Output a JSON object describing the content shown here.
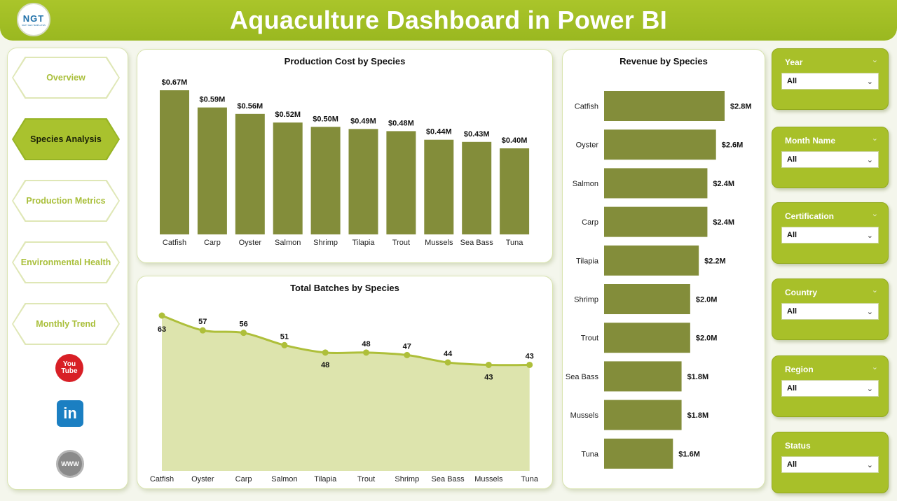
{
  "header": {
    "title": "Aquaculture Dashboard in Power BI",
    "logo_text": "NGT",
    "logo_subtext": "NEXT GEN TEMPLATES"
  },
  "nav": {
    "items": [
      {
        "label": "Overview",
        "active": false
      },
      {
        "label": "Species Analysis",
        "active": true
      },
      {
        "label": "Production Metrics",
        "active": false
      },
      {
        "label": "Environmental Health",
        "active": false
      },
      {
        "label": "Monthly Trend",
        "active": false
      }
    ],
    "social": {
      "youtube_top": "You",
      "youtube_bottom": "Tube",
      "linkedin": "in",
      "www": "WWW"
    }
  },
  "colors": {
    "accent": "#a8c029",
    "bar": "#838d3a",
    "line": "#aebf3a",
    "area": "#dde4ad"
  },
  "chart_data": [
    {
      "type": "bar",
      "title": "Production Cost by Species",
      "categories": [
        "Catfish",
        "Carp",
        "Oyster",
        "Salmon",
        "Shrimp",
        "Tilapia",
        "Trout",
        "Mussels",
        "Sea Bass",
        "Tuna"
      ],
      "values": [
        0.67,
        0.59,
        0.56,
        0.52,
        0.5,
        0.49,
        0.48,
        0.44,
        0.43,
        0.4
      ],
      "labels": [
        "$0.67M",
        "$0.59M",
        "$0.56M",
        "$0.52M",
        "$0.50M",
        "$0.49M",
        "$0.48M",
        "$0.44M",
        "$0.43M",
        "$0.40M"
      ],
      "ylim": [
        0,
        0.67
      ],
      "unit": "$M"
    },
    {
      "type": "area",
      "title": "Total Batches by Species",
      "categories": [
        "Catfish",
        "Oyster",
        "Carp",
        "Salmon",
        "Tilapia",
        "Trout",
        "Shrimp",
        "Sea Bass",
        "Mussels",
        "Tuna"
      ],
      "values": [
        63,
        57,
        56,
        51,
        48,
        48,
        47,
        44,
        43,
        43
      ],
      "ylim": [
        0,
        63
      ]
    },
    {
      "type": "bar",
      "orientation": "horizontal",
      "title": "Revenue by Species",
      "categories": [
        "Catfish",
        "Oyster",
        "Salmon",
        "Carp",
        "Tilapia",
        "Shrimp",
        "Trout",
        "Sea Bass",
        "Mussels",
        "Tuna"
      ],
      "values": [
        2.8,
        2.6,
        2.4,
        2.4,
        2.2,
        2.0,
        2.0,
        1.8,
        1.8,
        1.6
      ],
      "labels": [
        "$2.8M",
        "$2.6M",
        "$2.4M",
        "$2.4M",
        "$2.2M",
        "$2.0M",
        "$2.0M",
        "$1.8M",
        "$1.8M",
        "$1.6M"
      ],
      "xlim": [
        0,
        2.8
      ],
      "unit": "$M"
    }
  ],
  "slicers": [
    {
      "label": "Year",
      "value": "All"
    },
    {
      "label": "Month Name",
      "value": "All"
    },
    {
      "label": "Certification",
      "value": "All"
    },
    {
      "label": "Country",
      "value": "All"
    },
    {
      "label": "Region",
      "value": "All"
    },
    {
      "label": "Status",
      "value": "All"
    }
  ]
}
